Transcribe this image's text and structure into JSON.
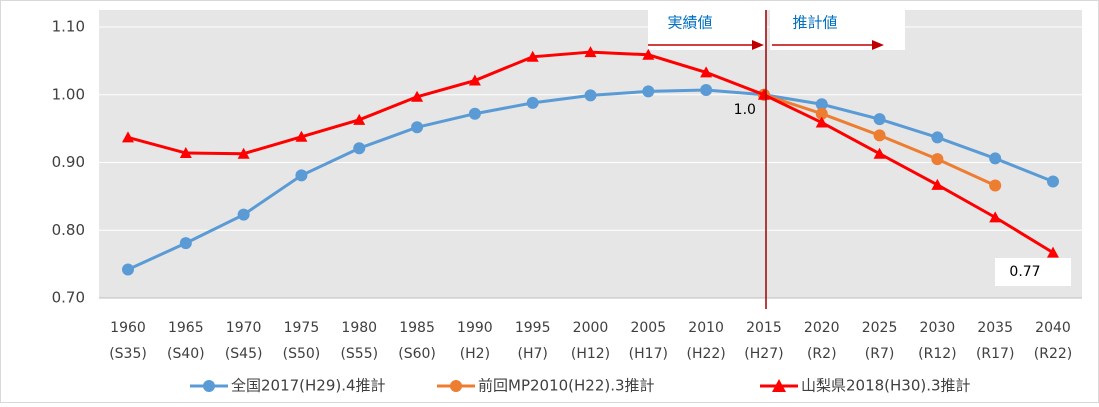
{
  "chart_data": {
    "type": "line",
    "categories": [
      [
        "1960",
        "(S35)"
      ],
      [
        "1965",
        "(S40)"
      ],
      [
        "1970",
        "(S45)"
      ],
      [
        "1975",
        "(S50)"
      ],
      [
        "1980",
        "(S55)"
      ],
      [
        "1985",
        "(S60)"
      ],
      [
        "1990",
        "(H2)"
      ],
      [
        "1995",
        "(H7)"
      ],
      [
        "2000",
        "(H12)"
      ],
      [
        "2005",
        "(H17)"
      ],
      [
        "2010",
        "(H22)"
      ],
      [
        "2015",
        "(H27)"
      ],
      [
        "2020",
        "(R2)"
      ],
      [
        "2025",
        "(R7)"
      ],
      [
        "2030",
        "(R12)"
      ],
      [
        "2035",
        "(R17)"
      ],
      [
        "2040",
        "(R22)"
      ]
    ],
    "series": [
      {
        "name": "全国2017(H29).4推計",
        "color": "#5b9bd5",
        "marker": "circle",
        "values": [
          0.742,
          0.781,
          0.823,
          0.881,
          0.921,
          0.952,
          0.972,
          0.988,
          0.999,
          1.005,
          1.007,
          1.0,
          0.986,
          0.964,
          0.937,
          0.906,
          0.872
        ],
        "value_labels": [
          null,
          null,
          null,
          null,
          null,
          null,
          null,
          null,
          null,
          null,
          null,
          "1.0",
          null,
          null,
          null,
          null,
          null
        ]
      },
      {
        "name": "前回MP2010(H22).3推計",
        "color": "#ed7d31",
        "marker": "circle",
        "values": [
          null,
          null,
          null,
          null,
          null,
          null,
          null,
          null,
          null,
          null,
          null,
          1.0,
          0.972,
          0.94,
          0.905,
          0.866,
          null
        ]
      },
      {
        "name": "山梨県2018(H30).3推計",
        "color": "#ff0000",
        "marker": "triangle",
        "values": [
          0.937,
          0.914,
          0.913,
          0.938,
          0.963,
          0.997,
          1.021,
          1.056,
          1.063,
          1.059,
          1.033,
          1.0,
          0.959,
          0.913,
          0.867,
          0.819,
          0.767
        ],
        "value_labels": [
          null,
          null,
          null,
          null,
          null,
          null,
          null,
          null,
          null,
          null,
          null,
          null,
          null,
          null,
          null,
          null,
          "0.77"
        ]
      }
    ],
    "annotations": [
      "実績値",
      "推計値"
    ],
    "ylim": [
      0.7,
      1.1
    ],
    "yticks": [
      {
        "value": 0.7,
        "label": "0.70"
      },
      {
        "value": 0.8,
        "label": "0.80"
      },
      {
        "value": 0.9,
        "label": "0.90"
      },
      {
        "value": 1.0,
        "label": "1.00"
      },
      {
        "value": 1.1,
        "label": "1.10"
      }
    ],
    "grid": true,
    "legend": "bottom"
  }
}
